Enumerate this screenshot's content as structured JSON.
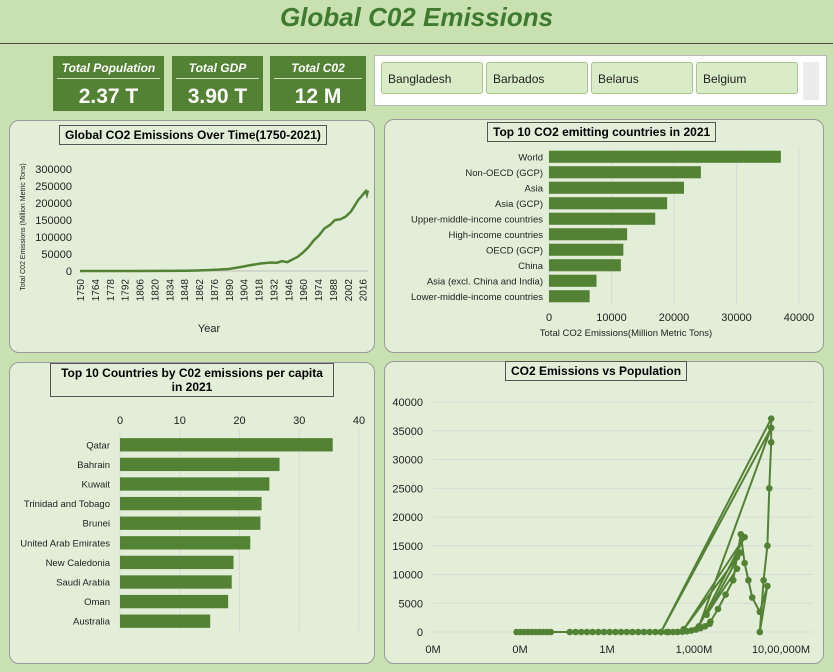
{
  "header": {
    "title": "Global C02 Emissions"
  },
  "kpis": [
    {
      "label": "Total Population",
      "value": "2.37 T"
    },
    {
      "label": "Total GDP",
      "value": "3.90 T"
    },
    {
      "label": "Total C02",
      "value": "12 M"
    }
  ],
  "slicer": {
    "items": [
      "Bangladesh",
      "Barbados",
      "Belarus",
      "Belgium"
    ]
  },
  "colors": {
    "bar": "#548235",
    "panel": "#e3eed8",
    "background": "#c9e0b0",
    "grid": "#d9d9d9"
  },
  "chart_data": [
    {
      "id": "overtime",
      "type": "line",
      "title": "Global CO2 Emissions Over Time(1750-2021)",
      "xlabel": "Year",
      "ylabel": "Total C02 Emissions (Million Metric Tons)",
      "ylim": [
        0,
        300000
      ],
      "yticks": [
        "0",
        "50000",
        "100000",
        "150000",
        "200000",
        "250000",
        "300000"
      ],
      "xticks": [
        "1750",
        "1764",
        "1778",
        "1792",
        "1806",
        "1820",
        "1834",
        "1848",
        "1862",
        "1876",
        "1890",
        "1904",
        "1918",
        "1932",
        "1946",
        "1960",
        "1974",
        "1988",
        "2002",
        "2016"
      ],
      "x": [
        1750,
        1800,
        1830,
        1850,
        1860,
        1870,
        1880,
        1890,
        1900,
        1910,
        1920,
        1930,
        1935,
        1940,
        1945,
        1950,
        1955,
        1960,
        1965,
        1970,
        1975,
        1980,
        1985,
        1990,
        1995,
        2000,
        2005,
        2008,
        2010,
        2012,
        2015,
        2018,
        2019,
        2020,
        2021
      ],
      "values": [
        0,
        50,
        200,
        700,
        1500,
        2500,
        4000,
        6000,
        11000,
        17000,
        22000,
        25000,
        24000,
        29000,
        26000,
        34000,
        42000,
        55000,
        70000,
        90000,
        105000,
        125000,
        135000,
        150000,
        152000,
        160000,
        175000,
        190000,
        200000,
        210000,
        220000,
        232000,
        235000,
        225000,
        237000
      ]
    },
    {
      "id": "top10",
      "type": "bar",
      "orientation": "horizontal",
      "title": "Top 10 CO2 emitting countries in 2021",
      "xlabel": "Total CO2 Emissions(Million Metric Tons)",
      "xlim": [
        0,
        40000
      ],
      "xticks": [
        "0",
        "10000",
        "20000",
        "30000",
        "40000"
      ],
      "categories": [
        "World",
        "Non-OECD (GCP)",
        "Asia",
        "Asia (GCP)",
        "Upper-middle-income countries",
        "High-income countries",
        "OECD (GCP)",
        "China",
        "Asia (excl. China and India)",
        "Lower-middle-income countries"
      ],
      "values": [
        37100,
        24300,
        21600,
        18900,
        17000,
        12500,
        11900,
        11500,
        7600,
        6500
      ]
    },
    {
      "id": "percapita",
      "type": "bar",
      "orientation": "horizontal",
      "title": "Top 10 Countries by C02 emissions per capita in 2021",
      "xlim": [
        0,
        40
      ],
      "xticks": [
        "0",
        "10",
        "20",
        "30",
        "40"
      ],
      "categories": [
        "Qatar",
        "Bahrain",
        "Kuwait",
        "Trinidad and Tobago",
        "Brunei",
        "United Arab Emirates",
        "New Caledonia",
        "Saudi Arabia",
        "Oman",
        "Australia"
      ],
      "values": [
        35.6,
        26.7,
        25.0,
        23.7,
        23.5,
        21.8,
        19.0,
        18.7,
        18.1,
        15.1
      ]
    },
    {
      "id": "scatter",
      "type": "scatter",
      "title": "CO2 Emissions vs Population",
      "ylim": [
        0,
        40000
      ],
      "yticks": [
        "0",
        "5000",
        "10000",
        "15000",
        "20000",
        "25000",
        "30000",
        "35000",
        "40000"
      ],
      "xticks": [
        "0M",
        "0M",
        "1M",
        "1,000M",
        "10,00,000M"
      ]
    }
  ]
}
